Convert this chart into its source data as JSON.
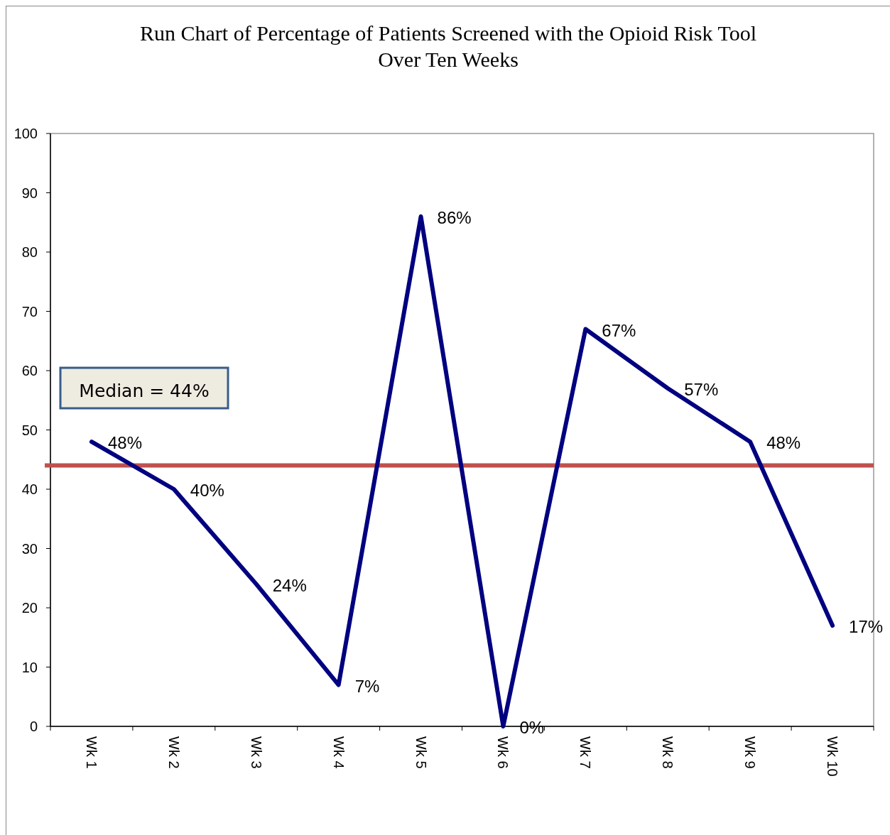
{
  "chart_data": {
    "type": "line",
    "title": "Run Chart of Percentage of Patients Screened with the Opioid Risk Tool Over Ten Weeks",
    "categories": [
      "Wk 1",
      "Wk 2",
      "Wk 3",
      "Wk 4",
      "Wk 5",
      "Wk 6",
      "Wk 7",
      "Wk 8",
      "Wk 9",
      "Wk 10"
    ],
    "series": [
      {
        "color": "#000080",
        "values": [
          48,
          40,
          24,
          7,
          86,
          0,
          67,
          57,
          48,
          17
        ],
        "value_labels": [
          "48%",
          "40%",
          "24%",
          "7%",
          "86%",
          "0%",
          "67%",
          "57%",
          "48%",
          "17%"
        ]
      }
    ],
    "ylim": [
      0,
      100
    ],
    "yticks": [
      0,
      10,
      20,
      30,
      40,
      50,
      60,
      70,
      80,
      90,
      100
    ],
    "ref_lines": [
      {
        "axis": "y",
        "value": 44,
        "color": "#c0504d"
      }
    ],
    "annotations": [
      "Median = 44%"
    ],
    "grid": false,
    "marker": "none",
    "line_style": "solid"
  }
}
